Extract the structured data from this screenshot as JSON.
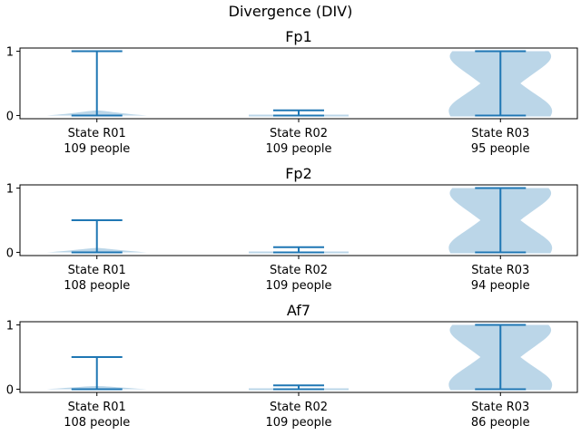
{
  "figure_title": "Divergence (DIV)",
  "colors": {
    "violin_fill": "#1f77b4",
    "violin_opacity": 0.3,
    "line": "#1f77b4",
    "axes": "#000000"
  },
  "chart_data": [
    {
      "type": "violin",
      "title": "Fp1",
      "ylim": [
        -0.05,
        1.05
      ],
      "yticks": [
        0,
        1
      ],
      "categories": [
        "State R01\n109 people",
        "State R02\n109 people",
        "State R03\n95 people"
      ],
      "series": [
        {
          "label": "State R01",
          "count_label": "109 people",
          "min": 0,
          "max": 1.0,
          "peak_y": 0.05,
          "shape": "spike"
        },
        {
          "label": "State R02",
          "count_label": "109 people",
          "min": 0,
          "max": 0.08,
          "peak_y": 0.02,
          "shape": "flat"
        },
        {
          "label": "State R03",
          "count_label": "95 people",
          "min": 0,
          "max": 1.0,
          "peak_y": 0.5,
          "shape": "hourglass"
        }
      ]
    },
    {
      "type": "violin",
      "title": "Fp2",
      "ylim": [
        -0.05,
        1.05
      ],
      "yticks": [
        0,
        1
      ],
      "categories": [
        "State R01\n108 people",
        "State R02\n109 people",
        "State R03\n94 people"
      ],
      "series": [
        {
          "label": "State R01",
          "count_label": "108 people",
          "min": 0,
          "max": 0.5,
          "peak_y": 0.04,
          "shape": "spike"
        },
        {
          "label": "State R02",
          "count_label": "109 people",
          "min": 0,
          "max": 0.08,
          "peak_y": 0.02,
          "shape": "flat"
        },
        {
          "label": "State R03",
          "count_label": "94 people",
          "min": 0,
          "max": 1.0,
          "peak_y": 0.5,
          "shape": "hourglass"
        }
      ]
    },
    {
      "type": "violin",
      "title": "Af7",
      "ylim": [
        -0.05,
        1.05
      ],
      "yticks": [
        0,
        1
      ],
      "categories": [
        "State R01\n108 people",
        "State R02\n109 people",
        "State R03\n86 people"
      ],
      "series": [
        {
          "label": "State R01",
          "count_label": "108 people",
          "min": 0,
          "max": 0.5,
          "peak_y": 0.02,
          "shape": "spike"
        },
        {
          "label": "State R02",
          "count_label": "109 people",
          "min": 0,
          "max": 0.06,
          "peak_y": 0.02,
          "shape": "flat"
        },
        {
          "label": "State R03",
          "count_label": "86 people",
          "min": 0,
          "max": 1.0,
          "peak_y": 0.5,
          "shape": "hourglass"
        }
      ]
    }
  ]
}
